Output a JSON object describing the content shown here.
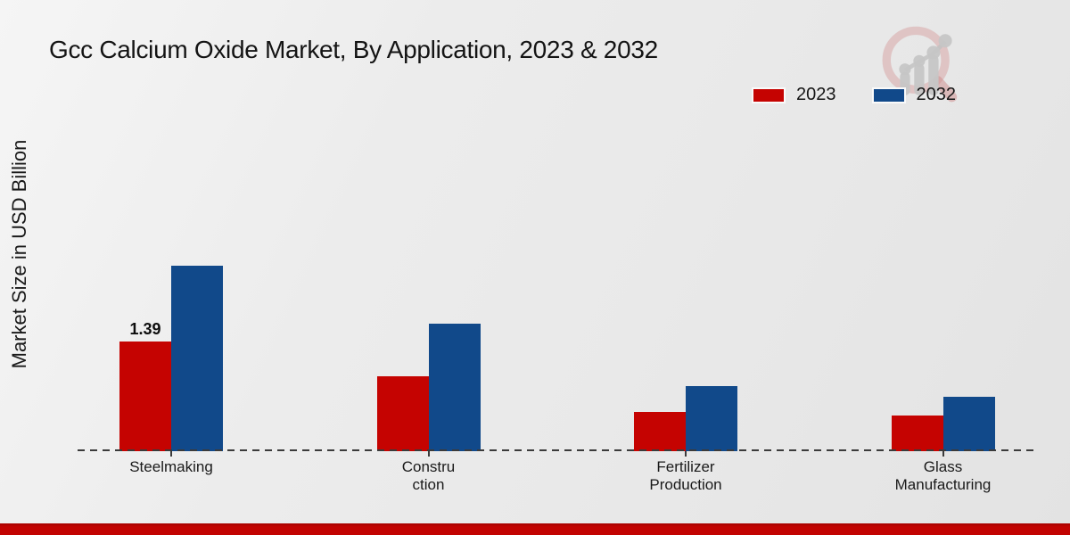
{
  "header": {
    "title": "Gcc Calcium Oxide Market, By Application, 2023 & 2032"
  },
  "legend": {
    "items": [
      {
        "label": "2023",
        "color": "#c50301"
      },
      {
        "label": "2032",
        "color": "#11498a"
      }
    ]
  },
  "chart_data": {
    "type": "bar",
    "title": "Gcc Calcium Oxide Market, By Application, 2023 & 2032",
    "xlabel": "",
    "ylabel": "Market Size in USD Billion",
    "categories": [
      "Steelmaking",
      "Construction",
      "Fertilizer Production",
      "Glass Manufacturing"
    ],
    "category_label_lines": [
      [
        "Steelmaking"
      ],
      [
        "Constru",
        "ction"
      ],
      [
        "Fertilizer",
        "Production"
      ],
      [
        "Glass",
        "Manufacturing"
      ]
    ],
    "series": [
      {
        "name": "2023",
        "color": "#c50301",
        "values": [
          1.39,
          0.95,
          0.5,
          0.45
        ]
      },
      {
        "name": "2032",
        "color": "#11498a",
        "values": [
          2.35,
          1.62,
          0.82,
          0.69
        ]
      }
    ],
    "data_labels": [
      {
        "series": "2023",
        "category": "Steelmaking",
        "text": "1.39"
      }
    ],
    "ylim": [
      0,
      2.5
    ],
    "grid": false,
    "baseline_style": "dashed",
    "legend_position": "top-right",
    "y_axis_ticks_visible": false
  },
  "footer": {
    "accent_color": "#c20301"
  },
  "watermark": {
    "icon": "magnifier-bar-chart-logo"
  }
}
